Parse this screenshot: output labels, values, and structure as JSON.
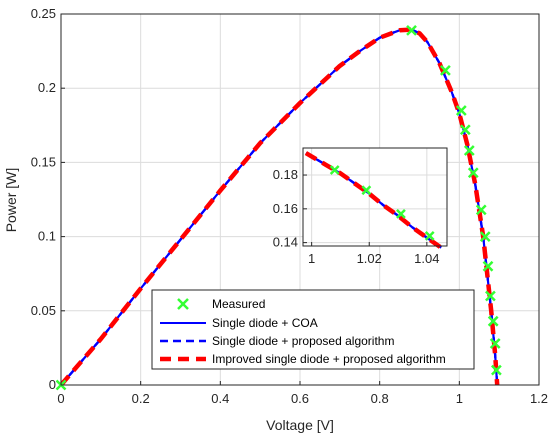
{
  "chart_data": [
    {
      "type": "line",
      "title": "",
      "xlabel": "Voltage [V]",
      "ylabel": "Power [W]",
      "xlim": [
        0,
        1.2
      ],
      "ylim": [
        0,
        0.25
      ],
      "xticks": [
        "0",
        "0.2",
        "0.4",
        "0.6",
        "0.8",
        "1",
        "1.2"
      ],
      "yticks": [
        "0",
        "0.05",
        "0.1",
        "0.15",
        "0.2",
        "0.25"
      ],
      "grid": true,
      "legend_position": "bottom-center",
      "series": [
        {
          "name": "Measured",
          "style": "marker-x",
          "color": "#33ff33",
          "x": [
            0,
            0.88,
            0.965,
            1.005,
            1.015,
            1.025,
            1.035,
            1.055,
            1.065,
            1.072,
            1.078,
            1.085,
            1.09,
            1.093
          ],
          "y": [
            0,
            0.239,
            0.212,
            0.185,
            0.172,
            0.158,
            0.143,
            0.118,
            0.1,
            0.08,
            0.06,
            0.043,
            0.028,
            0.01
          ]
        },
        {
          "name": "Single diode + COA",
          "style": "solid",
          "color": "#0000ff",
          "x": [
            0,
            0.1,
            0.2,
            0.3,
            0.4,
            0.5,
            0.6,
            0.7,
            0.75,
            0.8,
            0.85,
            0.88,
            0.9,
            0.92,
            0.95,
            0.98,
            1.0,
            1.02,
            1.04,
            1.06,
            1.08,
            1.09,
            1.095
          ],
          "y": [
            0,
            0.031,
            0.065,
            0.098,
            0.131,
            0.163,
            0.19,
            0.215,
            0.225,
            0.234,
            0.239,
            0.2395,
            0.237,
            0.231,
            0.217,
            0.198,
            0.183,
            0.162,
            0.135,
            0.1,
            0.05,
            0.02,
            0
          ]
        },
        {
          "name": "Single diode + proposed algorithm",
          "style": "dashed",
          "color": "#0000ff",
          "x": [
            0,
            0.1,
            0.2,
            0.3,
            0.4,
            0.5,
            0.6,
            0.7,
            0.75,
            0.8,
            0.85,
            0.88,
            0.9,
            0.92,
            0.95,
            0.98,
            1.0,
            1.02,
            1.04,
            1.06,
            1.08,
            1.09,
            1.095
          ],
          "y": [
            0,
            0.031,
            0.065,
            0.098,
            0.131,
            0.163,
            0.19,
            0.215,
            0.225,
            0.234,
            0.239,
            0.2395,
            0.237,
            0.231,
            0.217,
            0.198,
            0.183,
            0.162,
            0.135,
            0.1,
            0.05,
            0.02,
            0
          ]
        },
        {
          "name": "Improved single diode + proposed algorithm",
          "style": "thick-dashed",
          "color": "#ff0000",
          "x": [
            0,
            0.1,
            0.2,
            0.3,
            0.4,
            0.5,
            0.6,
            0.7,
            0.75,
            0.8,
            0.85,
            0.88,
            0.9,
            0.92,
            0.95,
            0.98,
            1.0,
            1.02,
            1.04,
            1.06,
            1.08,
            1.09,
            1.095
          ],
          "y": [
            0,
            0.031,
            0.065,
            0.098,
            0.131,
            0.163,
            0.19,
            0.215,
            0.225,
            0.234,
            0.239,
            0.2395,
            0.237,
            0.231,
            0.217,
            0.198,
            0.183,
            0.162,
            0.135,
            0.1,
            0.05,
            0.02,
            0
          ]
        }
      ]
    },
    {
      "type": "line",
      "title": "",
      "xlabel": "",
      "ylabel": "",
      "xlim": [
        0.997,
        1.047
      ],
      "ylim": [
        0.138,
        0.196
      ],
      "xticks": [
        "1",
        "1.02",
        "1.04"
      ],
      "yticks": [
        "0.14",
        "0.16",
        "0.18"
      ],
      "grid": true,
      "series": [
        {
          "name": "Measured",
          "style": "marker-x",
          "color": "#33ff33",
          "x": [
            1.008,
            1.019,
            1.031,
            1.041
          ],
          "y": [
            0.183,
            0.171,
            0.157,
            0.144
          ]
        },
        {
          "name": "Single diode + COA",
          "style": "solid",
          "color": "#0000ff",
          "x": [
            0.998,
            1.0,
            1.005,
            1.01,
            1.015,
            1.02,
            1.025,
            1.03,
            1.035,
            1.04,
            1.045
          ],
          "y": [
            0.193,
            0.191,
            0.186,
            0.181,
            0.175,
            0.169,
            0.162,
            0.156,
            0.149,
            0.143,
            0.137
          ]
        },
        {
          "name": "Single diode + proposed algorithm",
          "style": "dashed",
          "color": "#0000ff",
          "x": [
            0.998,
            1.0,
            1.005,
            1.01,
            1.015,
            1.02,
            1.025,
            1.03,
            1.035,
            1.04,
            1.045
          ],
          "y": [
            0.193,
            0.191,
            0.186,
            0.181,
            0.175,
            0.169,
            0.162,
            0.156,
            0.149,
            0.143,
            0.137
          ]
        },
        {
          "name": "Improved single diode + proposed algorithm",
          "style": "thick-dashed",
          "color": "#ff0000",
          "x": [
            0.998,
            1.0,
            1.005,
            1.01,
            1.015,
            1.02,
            1.025,
            1.03,
            1.035,
            1.04,
            1.045
          ],
          "y": [
            0.193,
            0.191,
            0.186,
            0.181,
            0.175,
            0.169,
            0.162,
            0.156,
            0.149,
            0.143,
            0.137
          ]
        }
      ]
    }
  ]
}
